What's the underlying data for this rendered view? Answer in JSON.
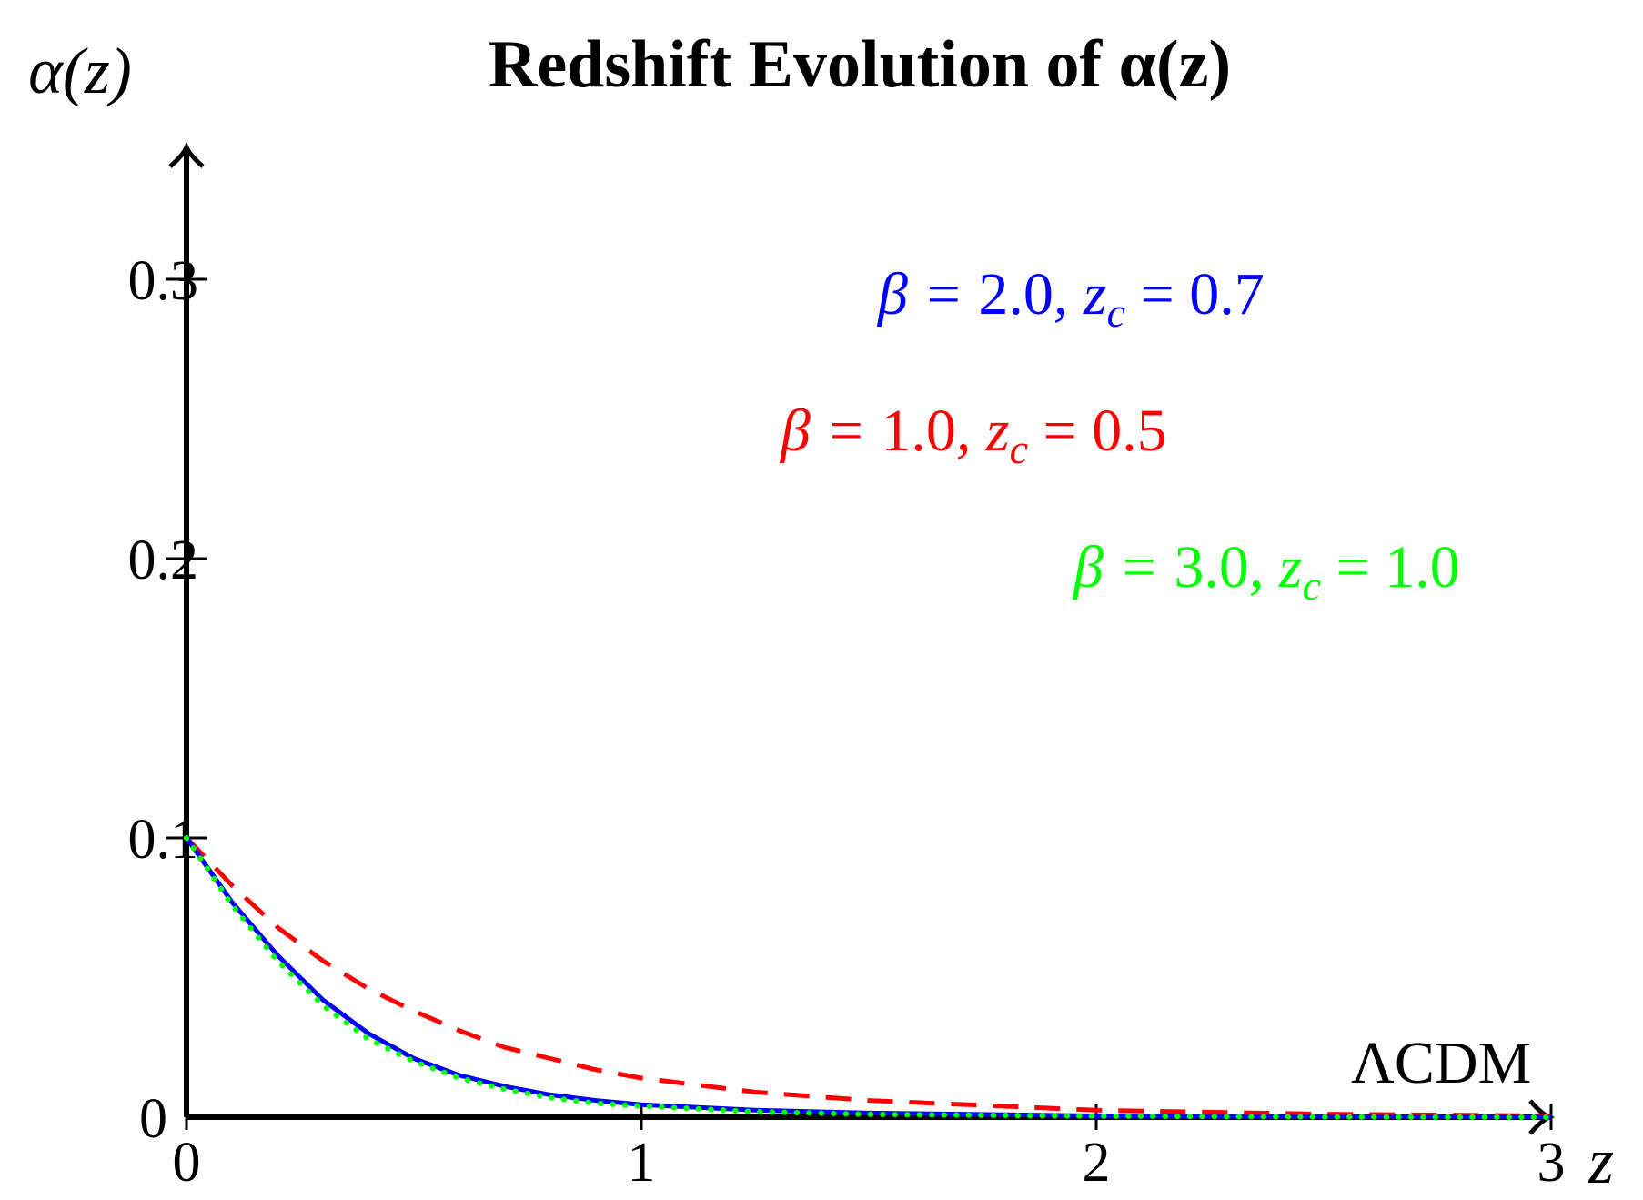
{
  "chart_data": {
    "type": "line",
    "title": "Redshift Evolution of α(z)",
    "xlabel": "z",
    "ylabel": "α(z)",
    "xlim": [
      0,
      3
    ],
    "ylim": [
      0,
      0.34
    ],
    "x_ticks": [
      0,
      1,
      2,
      3
    ],
    "x_tick_labels": [
      "0",
      "1",
      "2",
      "3"
    ],
    "y_ticks": [
      0,
      0.1,
      0.2,
      0.3
    ],
    "y_tick_labels": [
      "0",
      "0.1",
      "0.2",
      "0.3"
    ],
    "grid": false,
    "legend": "none",
    "series": [
      {
        "name": "β = 2.0, z_c = 0.7",
        "color": "#0000ff",
        "style": "solid",
        "x": [
          0,
          0.1,
          0.2,
          0.3,
          0.4,
          0.5,
          0.6,
          0.7,
          0.8,
          0.9,
          1.0,
          1.25,
          1.5,
          2.0,
          2.5,
          3.0
        ],
        "y": [
          0.1,
          0.077,
          0.058,
          0.042,
          0.03,
          0.021,
          0.015,
          0.011,
          0.008,
          0.006,
          0.0045,
          0.0025,
          0.0015,
          0.0005,
          0.0002,
          0.0001
        ]
      },
      {
        "name": "β = 1.0, z_c = 0.5",
        "color": "#ff0000",
        "style": "dashed",
        "x": [
          0,
          0.1,
          0.2,
          0.3,
          0.4,
          0.5,
          0.6,
          0.7,
          0.8,
          0.9,
          1.0,
          1.25,
          1.5,
          2.0,
          2.5,
          3.0
        ],
        "y": [
          0.1,
          0.083,
          0.068,
          0.056,
          0.046,
          0.038,
          0.031,
          0.025,
          0.021,
          0.017,
          0.014,
          0.009,
          0.006,
          0.0025,
          0.0011,
          0.0005
        ]
      },
      {
        "name": "β = 3.0, z_c = 1.0",
        "color": "#00ff00",
        "style": "dotted",
        "x": [
          0,
          0.1,
          0.2,
          0.3,
          0.4,
          0.5,
          0.6,
          0.7,
          0.8,
          0.9,
          1.0,
          1.25,
          1.5,
          2.0,
          2.5,
          3.0
        ],
        "y": [
          0.1,
          0.076,
          0.056,
          0.04,
          0.028,
          0.02,
          0.014,
          0.01,
          0.007,
          0.005,
          0.004,
          0.002,
          0.001,
          0.0004,
          0.0001,
          0.0
        ]
      }
    ],
    "annotations": [
      {
        "pre": "β = ",
        "val1": "2.0",
        "mid": ", z",
        "sub": "c",
        "eq": " = ",
        "val2": "0.7",
        "color": "#0000ff"
      },
      {
        "pre": "β = ",
        "val1": "1.0",
        "mid": ", z",
        "sub": "c",
        "eq": " = ",
        "val2": "0.5",
        "color": "#ff0000"
      },
      {
        "pre": "β = ",
        "val1": "3.0",
        "mid": ", z",
        "sub": "c",
        "eq": " = ",
        "val2": "1.0",
        "color": "#00ff00"
      },
      {
        "text": "ΛCDM",
        "color": "#000000"
      }
    ]
  }
}
